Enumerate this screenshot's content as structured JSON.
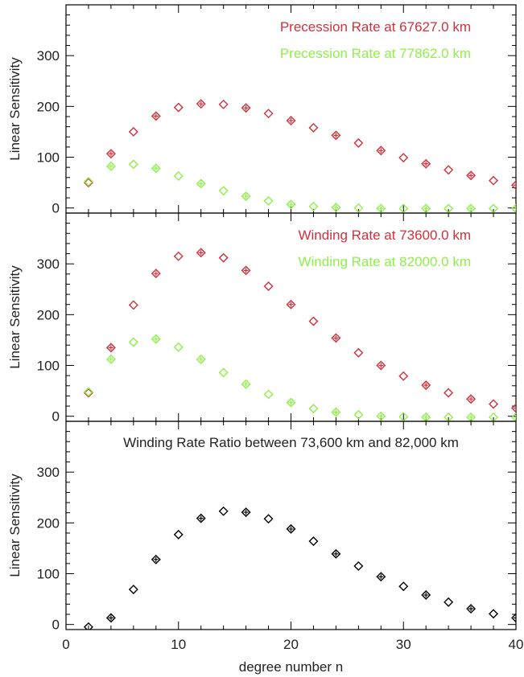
{
  "chart_data": [
    {
      "type": "scatter",
      "title": "",
      "ylabel": "Linear Sensitivity",
      "ylim": [
        -10,
        400
      ],
      "xlim": [
        0,
        40
      ],
      "yticks": [
        0,
        100,
        200,
        300
      ],
      "legend_position": "top-right",
      "series": [
        {
          "name": "Precession Rate at 67627.0 km",
          "color": "#d0313b",
          "x": [
            2,
            4,
            6,
            8,
            10,
            12,
            14,
            16,
            18,
            20,
            22,
            24,
            26,
            28,
            30,
            32,
            34,
            36,
            38,
            40
          ],
          "y": [
            50,
            107,
            150,
            181,
            198,
            205,
            204,
            197,
            186,
            172,
            158,
            143,
            128,
            113,
            99,
            87,
            75,
            64,
            54,
            45
          ]
        },
        {
          "name": "Precession Rate at 77862.0 km",
          "color": "#8ef049",
          "x": [
            2,
            4,
            6,
            8,
            10,
            12,
            14,
            16,
            18,
            20,
            22,
            24,
            26,
            28,
            30,
            32,
            34,
            36,
            38,
            40
          ],
          "y": [
            52,
            82,
            86,
            78,
            63,
            48,
            34,
            23,
            14,
            7,
            3,
            1,
            0,
            -1,
            -1,
            -1,
            -1,
            -1,
            -1,
            -1
          ]
        }
      ]
    },
    {
      "type": "scatter",
      "title": "",
      "ylabel": "Linear Sensitivity",
      "ylim": [
        -10,
        400
      ],
      "xlim": [
        0,
        40
      ],
      "yticks": [
        0,
        100,
        200,
        300
      ],
      "legend_position": "top-right",
      "series": [
        {
          "name": "Winding Rate at 73600.0 km",
          "color": "#d0313b",
          "x": [
            2,
            4,
            6,
            8,
            10,
            12,
            14,
            16,
            18,
            20,
            22,
            24,
            26,
            28,
            30,
            32,
            34,
            36,
            38,
            40
          ],
          "y": [
            46,
            135,
            219,
            281,
            315,
            322,
            312,
            287,
            256,
            220,
            187,
            154,
            125,
            100,
            79,
            61,
            46,
            34,
            24,
            16
          ]
        },
        {
          "name": "Winding Rate at 82000.0 km",
          "color": "#8ef049",
          "x": [
            2,
            4,
            6,
            8,
            10,
            12,
            14,
            16,
            18,
            20,
            22,
            24,
            26,
            28,
            30,
            32,
            34,
            36,
            38,
            40
          ],
          "y": [
            48,
            112,
            146,
            152,
            136,
            112,
            86,
            63,
            43,
            27,
            15,
            8,
            3,
            0,
            -1,
            -2,
            -2,
            -2,
            -2,
            -2
          ]
        }
      ]
    },
    {
      "type": "scatter",
      "title": "Winding Rate Ratio between 73,600 km and 82,000 km",
      "ylabel": "Linear Sensitivity",
      "xlabel": "degree number n",
      "ylim": [
        -10,
        400
      ],
      "xlim": [
        0,
        40
      ],
      "yticks": [
        0,
        100,
        200,
        300
      ],
      "xticks": [
        0,
        10,
        20,
        30,
        40
      ],
      "series": [
        {
          "color": "#000000",
          "x": [
            2,
            4,
            6,
            8,
            10,
            12,
            14,
            16,
            18,
            20,
            22,
            24,
            26,
            28,
            30,
            32,
            34,
            36,
            38,
            40
          ],
          "y": [
            -5,
            13,
            69,
            128,
            177,
            209,
            223,
            221,
            208,
            188,
            164,
            139,
            115,
            94,
            75,
            58,
            44,
            31,
            21,
            13
          ]
        }
      ]
    }
  ]
}
